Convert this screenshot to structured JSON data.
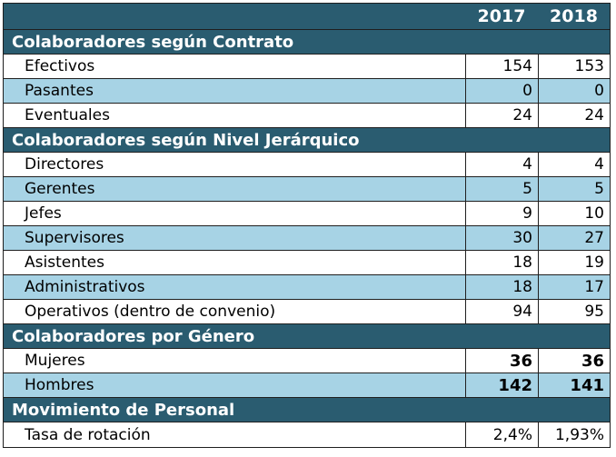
{
  "years": [
    "2017",
    "2018"
  ],
  "sections": [
    {
      "title": "Colaboradores según Contrato",
      "rows": [
        {
          "label": "Efectivos",
          "v2017": "154",
          "v2018": "153"
        },
        {
          "label": "Pasantes",
          "v2017": "0",
          "v2018": "0"
        },
        {
          "label": "Eventuales",
          "v2017": "24",
          "v2018": "24"
        }
      ]
    },
    {
      "title": "Colaboradores según Nivel Jerárquico",
      "rows": [
        {
          "label": "Directores",
          "v2017": "4",
          "v2018": "4"
        },
        {
          "label": "Gerentes",
          "v2017": "5",
          "v2018": "5"
        },
        {
          "label": "Jefes",
          "v2017": "9",
          "v2018": "10"
        },
        {
          "label": "Supervisores",
          "v2017": "30",
          "v2018": "27"
        },
        {
          "label": "Asistentes",
          "v2017": "18",
          "v2018": "19"
        },
        {
          "label": "Administrativos",
          "v2017": "18",
          "v2018": "17"
        },
        {
          "label": "Operativos (dentro de convenio)",
          "v2017": "94",
          "v2018": "95"
        }
      ]
    },
    {
      "title": "Colaboradores por Género",
      "rows": [
        {
          "label": "Mujeres",
          "v2017": "36",
          "v2018": "36"
        },
        {
          "label": "Hombres",
          "v2017": "142",
          "v2018": "141"
        }
      ]
    },
    {
      "title": "Movimiento de Personal",
      "rows": [
        {
          "label": "Tasa de rotación",
          "v2017": "2,4%",
          "v2018": "1,93%"
        }
      ]
    }
  ],
  "colors": {
    "header_bg": "#2a5c70",
    "alt_row_bg": "#a7d3e5",
    "row_bg": "#ffffff"
  }
}
